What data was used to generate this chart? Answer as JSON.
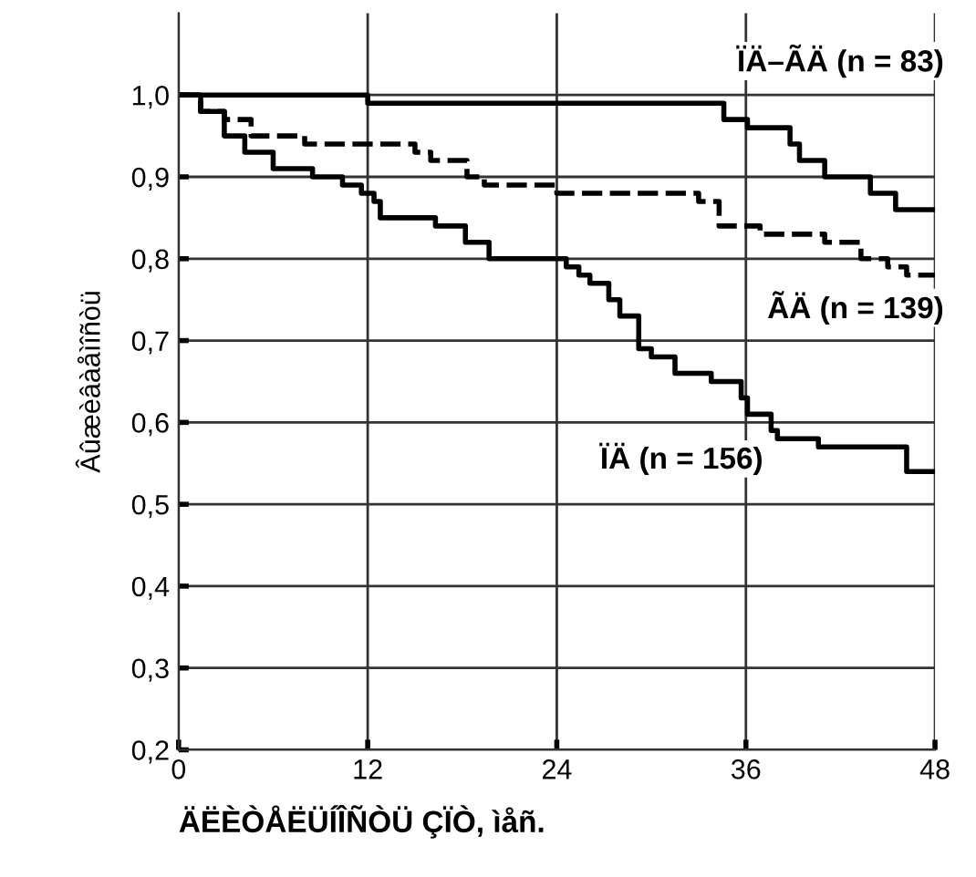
{
  "chart_data": {
    "type": "step",
    "xlabel": "ÄËÈÒÅËÜÍÎÑÒÜ ÇÏÒ, ìåñ.",
    "ylabel": "Âûæèâàåìîñòü",
    "xlim": [
      0,
      48
    ],
    "xticks": [
      0,
      12,
      24,
      36,
      48
    ],
    "ylim": [
      0.2,
      1.1
    ],
    "yticks": [
      {
        "value": 0.2,
        "label": "0,2"
      },
      {
        "value": 0.3,
        "label": "0,3"
      },
      {
        "value": 0.4,
        "label": "0,4"
      },
      {
        "value": 0.5,
        "label": "0,5"
      },
      {
        "value": 0.6,
        "label": "0,6"
      },
      {
        "value": 0.7,
        "label": "0,7"
      },
      {
        "value": 0.8,
        "label": "0,8"
      },
      {
        "value": 0.9,
        "label": "0,9"
      },
      {
        "value": 1.0,
        "label": "1,0"
      }
    ],
    "grid": true,
    "series": [
      {
        "color": "#000000",
        "line_style": "solid",
        "x": [
          0,
          12,
          34.6,
          36.1,
          38.8,
          39.4,
          41,
          43.9,
          45.5,
          48
        ],
        "values": [
          1.0,
          0.99,
          0.97,
          0.96,
          0.94,
          0.92,
          0.9,
          0.88,
          0.86,
          0.86
        ]
      },
      {
        "color": "#000000",
        "line_style": "dashed",
        "x": [
          0,
          1.4,
          2.9,
          4.6,
          8,
          15,
          16,
          18.3,
          19.4,
          24,
          33,
          34.3,
          36.9,
          41,
          43.3,
          45,
          46.2,
          48
        ],
        "values": [
          1.0,
          0.98,
          0.97,
          0.95,
          0.94,
          0.93,
          0.92,
          0.9,
          0.89,
          0.88,
          0.87,
          0.84,
          0.83,
          0.82,
          0.8,
          0.79,
          0.78,
          0.78
        ]
      },
      {
        "color": "#000000",
        "line_style": "solid",
        "x": [
          0,
          1.4,
          2.9,
          4.2,
          6,
          8.5,
          10.4,
          11.6,
          12.4,
          12.8,
          15.1,
          16.3,
          18.2,
          19.7,
          24.6,
          25.4,
          26.1,
          27.3,
          28,
          29.2,
          30,
          31.5,
          33.8,
          35.7,
          36.1,
          37.6,
          38,
          40.6,
          46.2,
          48
        ],
        "values": [
          1.0,
          0.98,
          0.95,
          0.93,
          0.91,
          0.9,
          0.89,
          0.88,
          0.87,
          0.85,
          0.85,
          0.84,
          0.82,
          0.8,
          0.79,
          0.78,
          0.77,
          0.75,
          0.73,
          0.69,
          0.68,
          0.66,
          0.65,
          0.63,
          0.61,
          0.59,
          0.58,
          0.57,
          0.54,
          0.54
        ]
      }
    ],
    "annotations": [
      "ÏÄ–ÃÄ (n = 83)",
      "ÃÄ (n = 139)",
      "ÏÄ (n = 156)"
    ]
  }
}
